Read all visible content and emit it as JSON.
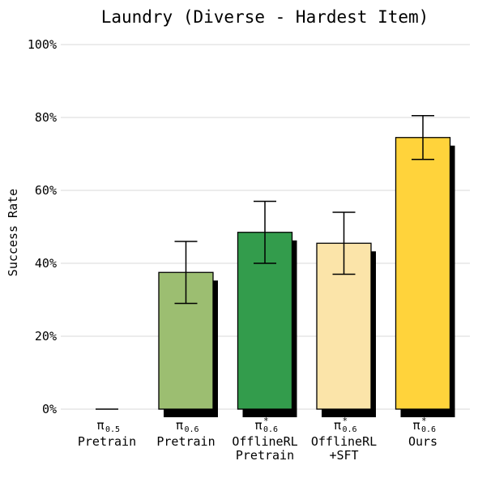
{
  "chart_data": {
    "type": "bar",
    "title": "Laundry (Diverse - Hardest Item)",
    "ylabel": "Success Rate",
    "xlabel": "",
    "ylim": [
      0,
      100
    ],
    "yticks": [
      0,
      20,
      40,
      60,
      80,
      100
    ],
    "ytick_labels": [
      "0%",
      "20%",
      "40%",
      "60%",
      "80%",
      "100%"
    ],
    "grid": true,
    "categories": [
      {
        "symbol": "π",
        "sup": "",
        "sub": "0.5",
        "lines": [
          "Pretrain"
        ]
      },
      {
        "symbol": "π",
        "sup": "",
        "sub": "0.6",
        "lines": [
          "Pretrain"
        ]
      },
      {
        "symbol": "π",
        "sup": "*",
        "sub": "0.6",
        "lines": [
          "OfflineRL",
          "Pretrain"
        ]
      },
      {
        "symbol": "π",
        "sup": "*",
        "sub": "0.6",
        "lines": [
          "OfflineRL",
          "+SFT"
        ]
      },
      {
        "symbol": "π",
        "sup": "*",
        "sub": "0.6",
        "lines": [
          "Ours"
        ]
      }
    ],
    "values": [
      0,
      37.5,
      48.5,
      45.5,
      74.5
    ],
    "error_low": [
      0,
      29,
      40,
      37,
      68.5
    ],
    "error_high": [
      0,
      46,
      57,
      54,
      80.5
    ],
    "colors": [
      "#9ccc65",
      "#9cbe71",
      "#339c4c",
      "#fbe4a9",
      "#ffd33b"
    ]
  }
}
